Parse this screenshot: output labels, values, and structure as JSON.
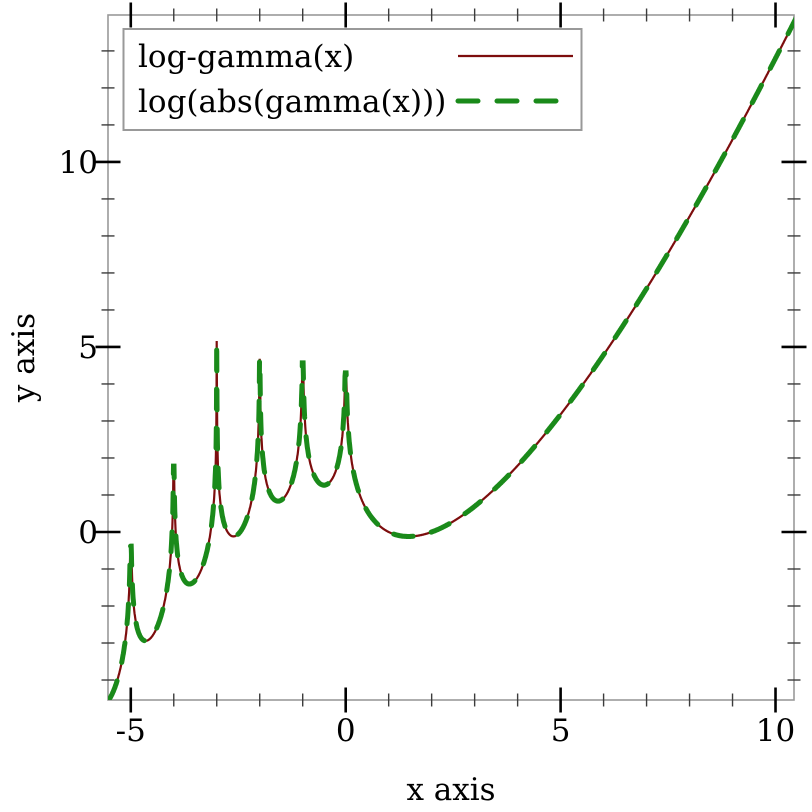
{
  "chart_data": {
    "type": "line",
    "title": "",
    "xlabel": "x axis",
    "ylabel": "y axis",
    "grid": false,
    "background": "#ffffff",
    "frame_color": "#999999",
    "major_tick_color": "#000000",
    "minor_tick_color": "#3c3c3c",
    "xlim": [
      -5.53,
      10.43
    ],
    "ylim": [
      -4.54,
      13.97
    ],
    "x_major_ticks": [
      -5,
      0,
      5,
      10
    ],
    "x_tick_labels": [
      "-5",
      "0",
      "5",
      "10"
    ],
    "x_minor_ticks": [
      -4,
      -3,
      -2,
      -1,
      1,
      2,
      3,
      4,
      6,
      7,
      8,
      9
    ],
    "y_major_ticks": [
      0,
      5,
      10
    ],
    "y_tick_labels": [
      "0",
      "5",
      "10"
    ],
    "y_minor_ticks": [
      -4,
      -3,
      -2,
      -1,
      1,
      2,
      3,
      4,
      6,
      7,
      8,
      9,
      11,
      12,
      13
    ],
    "legend": {
      "position": "top-left",
      "entries": [
        {
          "label": "log-gamma(x)",
          "color": "#7d0d0d",
          "line_style": "solid"
        },
        {
          "label": "log(abs(gamma(x)))",
          "color": "#1a8a1a",
          "line_style": "long-dash"
        }
      ]
    },
    "series": [
      {
        "name": "log-gamma(x)",
        "expression": "log(abs(gamma(x)))",
        "domain": [
          -5.5,
          10.5
        ],
        "color": "#7d0d0d",
        "line_style": "solid",
        "line_width": 2.2
      },
      {
        "name": "log(abs(gamma(x)))",
        "expression": "log(abs(gamma(x)))",
        "domain": [
          -5.5,
          10.5
        ],
        "color": "#1a8a1a",
        "line_style": "long-dash",
        "line_width": 5,
        "dash_pattern": [
          20,
          19
        ]
      }
    ],
    "poles_sampled_peak_y": {
      "-5": -0.38,
      "-4": 1.78,
      "-3": 5.16,
      "-2": 4.68,
      "-1": 4.57,
      "0": 4.3
    },
    "key_points": [
      {
        "x": -5.5,
        "y": -4.52,
        "note": "left end of curve"
      },
      {
        "x": -4.53,
        "y": -2.8,
        "note": "local minimum"
      },
      {
        "x": -3.5,
        "y": -1.31,
        "note": "local minimum"
      },
      {
        "x": -2.46,
        "y": -0.06,
        "note": "local minimum"
      },
      {
        "x": -1.57,
        "y": 0.86,
        "note": "local minimum"
      },
      {
        "x": -0.5,
        "y": 1.27,
        "note": "local minimum"
      },
      {
        "x": 1.0,
        "y": 0.0,
        "note": "zero of log-gamma"
      },
      {
        "x": 1.4616,
        "y": -0.1214,
        "note": "global minimum on x>0"
      },
      {
        "x": 2.0,
        "y": 0.0,
        "note": "zero of log-gamma"
      },
      {
        "x": 5.0,
        "y": 3.178,
        "note": "ln(4!)"
      },
      {
        "x": 10.5,
        "y": 13.94,
        "note": "right end of curve"
      }
    ]
  }
}
